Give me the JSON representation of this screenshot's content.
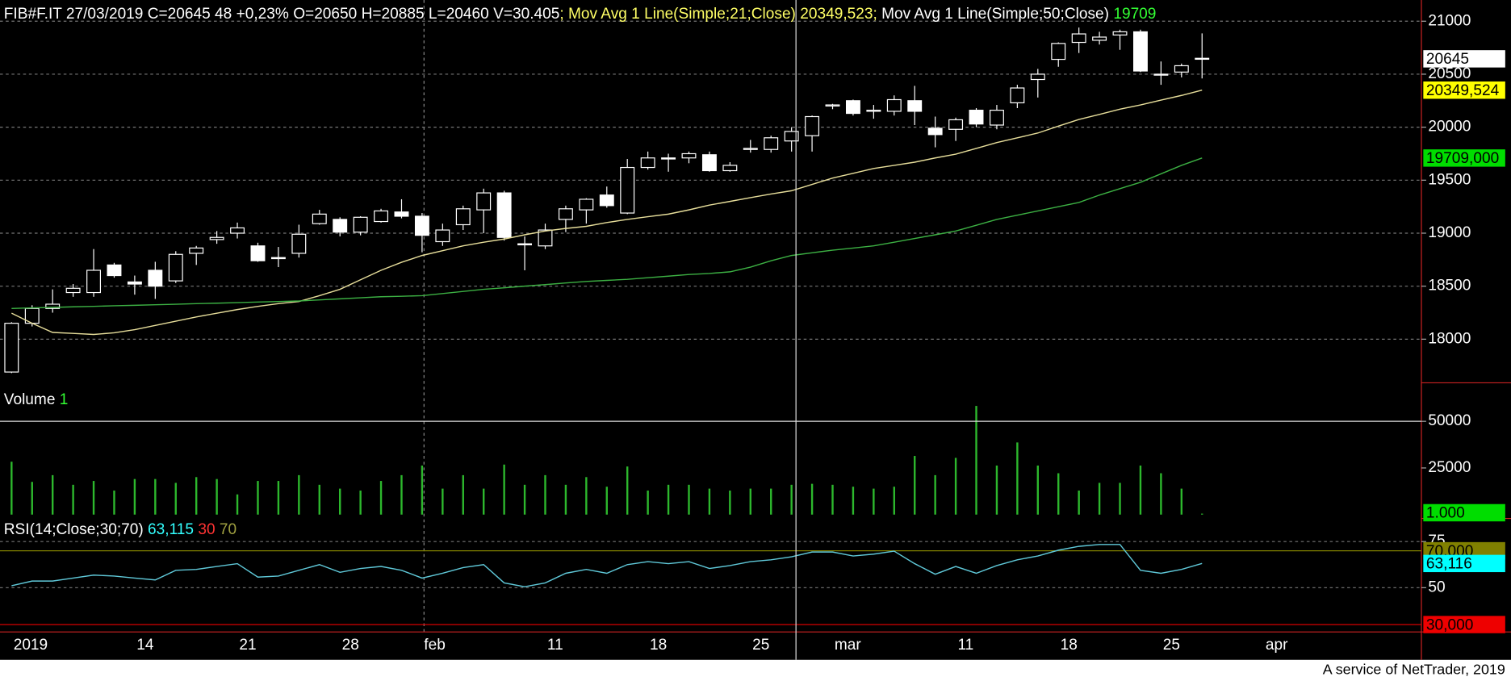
{
  "chart_data": [
    {
      "type": "candlestick",
      "header": [
        {
          "text": "FIB#F.IT 27/03/2019 C=20645 48 +0,23% O=20650 H=20885 L=20460 V=30.405",
          "color": "#ffffff"
        },
        {
          "text": "; Mov Avg 1 Line(Simple;21;Close) 20349,523;",
          "color": "#ffff66"
        },
        {
          "text": " Mov Avg 1 Line(Simple;50;Close)",
          "color": "#ffffff"
        },
        {
          "text": " 19709",
          "color": "#33ff33"
        }
      ],
      "categories": [
        "2019",
        null,
        null,
        null,
        null,
        null,
        "14",
        null,
        null,
        null,
        null,
        "21",
        null,
        null,
        null,
        null,
        "28",
        null,
        null,
        null,
        "feb",
        null,
        null,
        null,
        null,
        null,
        "11",
        null,
        null,
        null,
        null,
        "18",
        null,
        null,
        null,
        null,
        "25",
        null,
        null,
        null,
        "mar",
        null,
        null,
        null,
        null,
        null,
        "11",
        null,
        null,
        null,
        null,
        "18",
        null,
        null,
        null,
        null,
        "25",
        null,
        null,
        null,
        null,
        "apr"
      ],
      "open": [
        17690,
        18150,
        18290,
        18440,
        18440,
        18700,
        18540,
        18650,
        18550,
        18810,
        18940,
        19000,
        18880,
        18770,
        18810,
        19090,
        19130,
        19010,
        19110,
        19200,
        19160,
        18920,
        19080,
        19220,
        19380,
        18900,
        18880,
        19130,
        19220,
        19360,
        19190,
        19620,
        19710,
        19710,
        19740,
        19590,
        19790,
        19790,
        19870,
        19920,
        20200,
        20250,
        20150,
        20150,
        20250,
        19990,
        19980,
        20160,
        20020,
        20230,
        20450,
        20640,
        20800,
        20820,
        20870,
        20900,
        20500,
        20520,
        20650,
        null,
        null,
        null
      ],
      "high": [
        18160,
        18320,
        18470,
        18520,
        18850,
        18720,
        18600,
        18730,
        18830,
        18880,
        19020,
        19100,
        18910,
        18870,
        19080,
        19220,
        19150,
        19160,
        19230,
        19320,
        19190,
        19090,
        19260,
        19420,
        19400,
        18970,
        19090,
        19260,
        19330,
        19440,
        19700,
        19770,
        19750,
        19770,
        19770,
        19670,
        19880,
        19920,
        20000,
        20110,
        20220,
        20260,
        20210,
        20300,
        20390,
        20100,
        20090,
        20180,
        20210,
        20400,
        20550,
        20800,
        20940,
        20900,
        20920,
        20920,
        20620,
        20600,
        20885,
        null,
        null,
        null
      ],
      "low": [
        17680,
        18120,
        18250,
        18400,
        18400,
        18580,
        18420,
        18380,
        18530,
        18700,
        18900,
        18950,
        18730,
        18680,
        18770,
        19080,
        18970,
        18980,
        19100,
        19140,
        18820,
        18880,
        19030,
        19000,
        18930,
        18650,
        18850,
        19010,
        19090,
        19240,
        19180,
        19600,
        19580,
        19660,
        19580,
        19580,
        19760,
        19760,
        19770,
        19770,
        20170,
        20110,
        20080,
        20110,
        20020,
        19810,
        19870,
        20000,
        19980,
        20180,
        20280,
        20570,
        20700,
        20780,
        20730,
        20520,
        20400,
        20470,
        20460,
        null,
        null,
        null
      ],
      "close": [
        18150,
        18290,
        18330,
        18480,
        18650,
        18600,
        18520,
        18500,
        18800,
        18860,
        18960,
        19050,
        18740,
        18760,
        18990,
        19180,
        19010,
        19150,
        19210,
        19160,
        18980,
        19030,
        19230,
        19380,
        18960,
        18890,
        19030,
        19230,
        19320,
        19260,
        19620,
        19710,
        19700,
        19750,
        19590,
        19640,
        19800,
        19900,
        19960,
        20100,
        20210,
        20130,
        20160,
        20260,
        20150,
        19930,
        20070,
        20030,
        20160,
        20370,
        20500,
        20790,
        20880,
        20850,
        20900,
        20530,
        20500,
        20580,
        20645,
        null,
        null,
        null
      ],
      "series": [
        {
          "color": "#e6dd9a",
          "values": [
            18245,
            18150,
            18064,
            18055,
            18045,
            18060,
            18090,
            18130,
            18170,
            18210,
            18245,
            18280,
            18310,
            18335,
            18355,
            18410,
            18470,
            18560,
            18650,
            18725,
            18790,
            18835,
            18880,
            18915,
            18945,
            18985,
            19020,
            19045,
            19065,
            19100,
            19130,
            19155,
            19180,
            19220,
            19265,
            19300,
            19335,
            19370,
            19400,
            19460,
            19520,
            19565,
            19610,
            19640,
            19670,
            19710,
            19745,
            19800,
            19855,
            19900,
            19945,
            20010,
            20073,
            20120,
            20170,
            20210,
            20255,
            20300,
            20349.523,
            null,
            null,
            null
          ]
        },
        {
          "color": "#3cb043",
          "values": [
            18290,
            18295,
            18300,
            18305,
            18310,
            18315,
            18320,
            18325,
            18330,
            18335,
            18340,
            18345,
            18350,
            18355,
            18360,
            18370,
            18380,
            18390,
            18400,
            18405,
            18410,
            18430,
            18450,
            18470,
            18485,
            18500,
            18515,
            18530,
            18545,
            18555,
            18565,
            18580,
            18595,
            18610,
            18620,
            18635,
            18680,
            18740,
            18790,
            18815,
            18840,
            18860,
            18880,
            18915,
            18950,
            18985,
            19020,
            19075,
            19130,
            19170,
            19210,
            19250,
            19290,
            19360,
            19420,
            19480,
            19560,
            19640,
            19709,
            null,
            null,
            null
          ]
        }
      ],
      "ylim": [
        17570,
        21200
      ],
      "yticks": [
        18000,
        18500,
        19000,
        19500,
        20000,
        20500,
        21000
      ],
      "grid": true,
      "markers": [
        {
          "value": 20645,
          "color": "#ffffff"
        },
        {
          "value": 20349.524,
          "label": "20349,524",
          "color": "#ffff00"
        },
        {
          "value": 19709,
          "label": "19709,000",
          "color": "#00dd00"
        }
      ]
    },
    {
      "type": "bar",
      "header": [
        {
          "text": "Volume",
          "color": "#ffffff"
        },
        {
          "text": " 1",
          "color": "#33ff33"
        }
      ],
      "color": "#2db82d",
      "values": [
        28350,
        17530,
        21140,
        15980,
        18040,
        12890,
        19070,
        19070,
        17010,
        20100,
        19070,
        10830,
        18040,
        18040,
        21140,
        15980,
        13920,
        12890,
        18040,
        21140,
        26290,
        13920,
        21140,
        13920,
        26810,
        15980,
        21140,
        15980,
        20100,
        14950,
        25780,
        12890,
        15980,
        15980,
        13920,
        12890,
        13920,
        13920,
        15980,
        16500,
        15980,
        14950,
        13920,
        14950,
        31450,
        21140,
        30410,
        58250,
        26290,
        38660,
        26290,
        22170,
        12890,
        17010,
        17010,
        26290,
        22170,
        13920,
        520,
        null,
        null,
        null
      ],
      "ylim": [
        0,
        69600
      ],
      "yticks": [
        25000,
        50000
      ],
      "grid": false,
      "markers": [
        {
          "value": 1000,
          "label": "1.000",
          "color": "#00dd00"
        }
      ]
    },
    {
      "type": "line",
      "header": [
        {
          "text": "RSI(14;Close;30;70)",
          "color": "#ffffff"
        },
        {
          "text": " 63,115",
          "color": "#33ffff"
        },
        {
          "text": " 30",
          "color": "#ff3333"
        },
        {
          "text": " 70",
          "color": "#a0a040"
        }
      ],
      "series": [
        {
          "color": "#5fc8d8",
          "values": [
            51.0,
            53.6,
            53.6,
            55.2,
            56.8,
            56.3,
            55.2,
            54.2,
            59.4,
            59.9,
            61.5,
            63.0,
            55.7,
            56.3,
            59.4,
            62.5,
            58.3,
            60.4,
            61.5,
            59.4,
            55.2,
            57.8,
            60.9,
            62.5,
            52.6,
            50.5,
            52.6,
            57.8,
            59.9,
            57.8,
            62.5,
            64.1,
            63.0,
            64.1,
            60.4,
            62.0,
            64.1,
            65.1,
            66.7,
            69.3,
            69.3,
            67.2,
            68.2,
            69.8,
            63.0,
            57.3,
            61.5,
            57.8,
            62.0,
            65.1,
            67.2,
            70.3,
            72.4,
            73.4,
            73.4,
            59.4,
            57.8,
            59.9,
            63.115,
            null,
            null,
            null
          ]
        }
      ],
      "ylim": [
        26,
        87
      ],
      "yticks": [
        50,
        75
      ],
      "grid": true,
      "levels": [
        {
          "value": 70,
          "label": "70,000",
          "color": "#808000"
        },
        {
          "value": 30,
          "label": "30,000",
          "color": "#ee0000"
        }
      ],
      "markers": [
        {
          "value": 63.116,
          "label": "63,116",
          "color": "#00ffff"
        }
      ]
    }
  ],
  "footer": "A service of NetTrader, 2019"
}
